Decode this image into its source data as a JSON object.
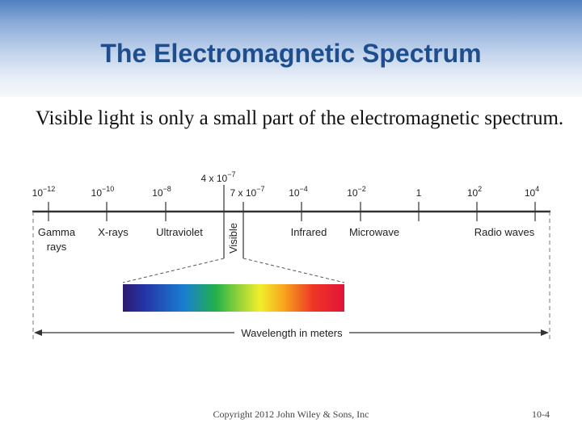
{
  "title": "The Electromagnetic Spectrum",
  "body_text": "Visible light is only a small part of the electromagnetic spectrum.",
  "diagram": {
    "scale_labels": [
      {
        "base": "10",
        "exp": "−12"
      },
      {
        "base": "10",
        "exp": "−10"
      },
      {
        "base": "10",
        "exp": "−8"
      },
      {
        "base": "7 x 10",
        "exp": "−7"
      },
      {
        "base": "10",
        "exp": "−4"
      },
      {
        "base": "10",
        "exp": "−2"
      },
      {
        "base": "1",
        "exp": ""
      },
      {
        "base": "10",
        "exp": "2"
      },
      {
        "base": "10",
        "exp": "4"
      }
    ],
    "upper_label": {
      "base": "4 x 10",
      "exp": "−7"
    },
    "regions": {
      "gamma_line1": "Gamma",
      "gamma_line2": "rays",
      "xrays": "X-rays",
      "ultraviolet": "Ultraviolet",
      "visible": "Visible",
      "infrared": "Infrared",
      "microwave": "Microwave",
      "radio": "Radio waves"
    },
    "axis_label": "Wavelength in meters"
  },
  "footer": {
    "copyright": "Copyright 2012 John Wiley & Sons, Inc",
    "slide_number": "10-4"
  }
}
